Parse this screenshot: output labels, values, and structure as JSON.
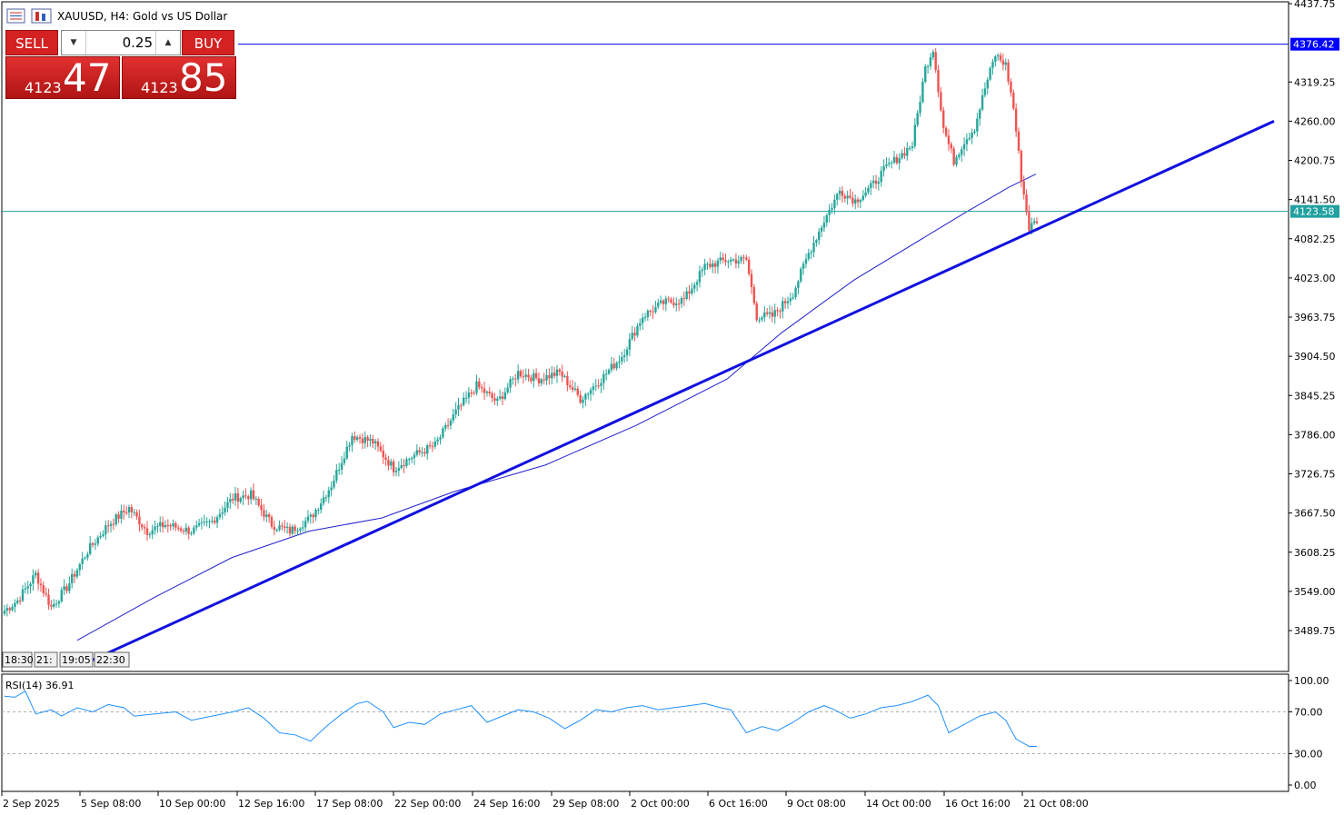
{
  "window": {
    "title": "XAUUSD, H4:  Gold vs US Dollar"
  },
  "trade_panel": {
    "sell_label": "SELL",
    "buy_label": "BUY",
    "volume": "0.25",
    "sell_price_small": "4123",
    "sell_price_big": "47",
    "buy_price_small": "4123",
    "buy_price_big": "85",
    "color": "#d42222"
  },
  "rsi": {
    "label": "RSI(14) 36.91",
    "levels": [
      30,
      70
    ],
    "ticks": [
      "100.00",
      "70.00",
      "30.00",
      "0.00"
    ],
    "color": "#1e90ff"
  },
  "scale_labels": [
    "18:30",
    "21:",
    "19:05",
    "22:30"
  ],
  "chart_data": {
    "type": "candlestick",
    "symbol": "XAUUSD",
    "timeframe": "H4",
    "ylim": [
      3440,
      4437.75
    ],
    "yticks": [
      "4437.75",
      "4376.42",
      "4319.25",
      "4260.00",
      "4200.75",
      "4141.50",
      "4082.25",
      "4023.00",
      "3963.75",
      "3904.50",
      "3845.25",
      "3786.00",
      "3726.75",
      "3667.50",
      "3608.25",
      "3549.00",
      "3489.75"
    ],
    "xticks": [
      "2 Sep 2025",
      "5 Sep 08:00",
      "10 Sep 00:00",
      "12 Sep 16:00",
      "17 Sep 08:00",
      "22 Sep 00:00",
      "24 Sep 16:00",
      "29 Sep 08:00",
      "2 Oct 00:00",
      "6 Oct 16:00",
      "9 Oct 08:00",
      "14 Oct 00:00",
      "16 Oct 16:00",
      "21 Oct 08:00"
    ],
    "price_tags": [
      {
        "value": 4376.42,
        "label": "4376.42",
        "color": "#0000ff"
      },
      {
        "value": 4123.58,
        "label": "4123.58",
        "color": "#20a0a0"
      }
    ],
    "close_anchors": [
      [
        0,
        3520
      ],
      [
        5,
        3535
      ],
      [
        12,
        3575
      ],
      [
        18,
        3525
      ],
      [
        24,
        3555
      ],
      [
        32,
        3610
      ],
      [
        40,
        3650
      ],
      [
        48,
        3675
      ],
      [
        55,
        3640
      ],
      [
        62,
        3650
      ],
      [
        72,
        3640
      ],
      [
        80,
        3655
      ],
      [
        88,
        3690
      ],
      [
        95,
        3695
      ],
      [
        103,
        3650
      ],
      [
        110,
        3640
      ],
      [
        118,
        3660
      ],
      [
        126,
        3710
      ],
      [
        134,
        3785
      ],
      [
        142,
        3775
      ],
      [
        150,
        3735
      ],
      [
        158,
        3755
      ],
      [
        166,
        3770
      ],
      [
        174,
        3820
      ],
      [
        182,
        3860
      ],
      [
        190,
        3835
      ],
      [
        198,
        3880
      ],
      [
        206,
        3870
      ],
      [
        214,
        3880
      ],
      [
        222,
        3840
      ],
      [
        230,
        3870
      ],
      [
        238,
        3905
      ],
      [
        246,
        3965
      ],
      [
        254,
        3985
      ],
      [
        262,
        3990
      ],
      [
        270,
        4040
      ],
      [
        278,
        4050
      ],
      [
        286,
        4050
      ],
      [
        290,
        3965
      ],
      [
        296,
        3965
      ],
      [
        304,
        4000
      ],
      [
        310,
        4060
      ],
      [
        316,
        4110
      ],
      [
        322,
        4155
      ],
      [
        328,
        4140
      ],
      [
        334,
        4160
      ],
      [
        340,
        4190
      ],
      [
        346,
        4210
      ],
      [
        350,
        4225
      ],
      [
        355,
        4340
      ],
      [
        358,
        4370
      ],
      [
        362,
        4250
      ],
      [
        366,
        4200
      ],
      [
        370,
        4230
      ],
      [
        374,
        4250
      ],
      [
        378,
        4310
      ],
      [
        382,
        4360
      ],
      [
        386,
        4345
      ],
      [
        389,
        4280
      ],
      [
        392,
        4175
      ],
      [
        395,
        4098
      ],
      [
        398,
        4110
      ]
    ],
    "trendline": [
      [
        3420,
        3441
      ],
      [
        4260,
        4437
      ]
    ],
    "ma": [
      [
        3475,
        3520
      ],
      [
        3540,
        3600
      ],
      [
        3600,
        3640
      ],
      [
        3640,
        3660
      ],
      [
        3660,
        3670
      ],
      [
        3700,
        3710
      ],
      [
        3740,
        3770
      ],
      [
        3800,
        3830
      ],
      [
        3870,
        3900
      ],
      [
        3940,
        3980
      ],
      [
        4020,
        4070
      ],
      [
        4120,
        4150
      ],
      [
        4160,
        4180
      ],
      [
        4180,
        4190
      ]
    ],
    "rsi_series": [
      [
        0,
        85
      ],
      [
        4,
        84
      ],
      [
        8,
        90
      ],
      [
        12,
        68
      ],
      [
        18,
        72
      ],
      [
        22,
        66
      ],
      [
        28,
        74
      ],
      [
        34,
        70
      ],
      [
        40,
        77
      ],
      [
        46,
        74
      ],
      [
        50,
        66
      ],
      [
        58,
        68
      ],
      [
        66,
        70
      ],
      [
        72,
        62
      ],
      [
        80,
        66
      ],
      [
        88,
        70
      ],
      [
        94,
        74
      ],
      [
        100,
        64
      ],
      [
        106,
        50
      ],
      [
        112,
        48
      ],
      [
        118,
        42
      ],
      [
        124,
        56
      ],
      [
        130,
        68
      ],
      [
        136,
        78
      ],
      [
        140,
        80
      ],
      [
        146,
        70
      ],
      [
        150,
        55
      ],
      [
        156,
        60
      ],
      [
        162,
        58
      ],
      [
        168,
        68
      ],
      [
        174,
        72
      ],
      [
        180,
        76
      ],
      [
        186,
        60
      ],
      [
        192,
        66
      ],
      [
        198,
        72
      ],
      [
        204,
        70
      ],
      [
        210,
        64
      ],
      [
        216,
        54
      ],
      [
        222,
        62
      ],
      [
        228,
        72
      ],
      [
        234,
        70
      ],
      [
        240,
        74
      ],
      [
        246,
        76
      ],
      [
        252,
        72
      ],
      [
        258,
        74
      ],
      [
        264,
        76
      ],
      [
        270,
        78
      ],
      [
        276,
        74
      ],
      [
        280,
        72
      ],
      [
        286,
        50
      ],
      [
        292,
        56
      ],
      [
        298,
        52
      ],
      [
        304,
        60
      ],
      [
        310,
        70
      ],
      [
        316,
        76
      ],
      [
        320,
        72
      ],
      [
        326,
        64
      ],
      [
        332,
        68
      ],
      [
        338,
        74
      ],
      [
        344,
        76
      ],
      [
        350,
        80
      ],
      [
        356,
        86
      ],
      [
        360,
        76
      ],
      [
        364,
        50
      ],
      [
        370,
        58
      ],
      [
        376,
        66
      ],
      [
        382,
        70
      ],
      [
        386,
        62
      ],
      [
        390,
        44
      ],
      [
        395,
        37
      ],
      [
        398,
        36.91
      ]
    ],
    "n_bars": 399
  }
}
